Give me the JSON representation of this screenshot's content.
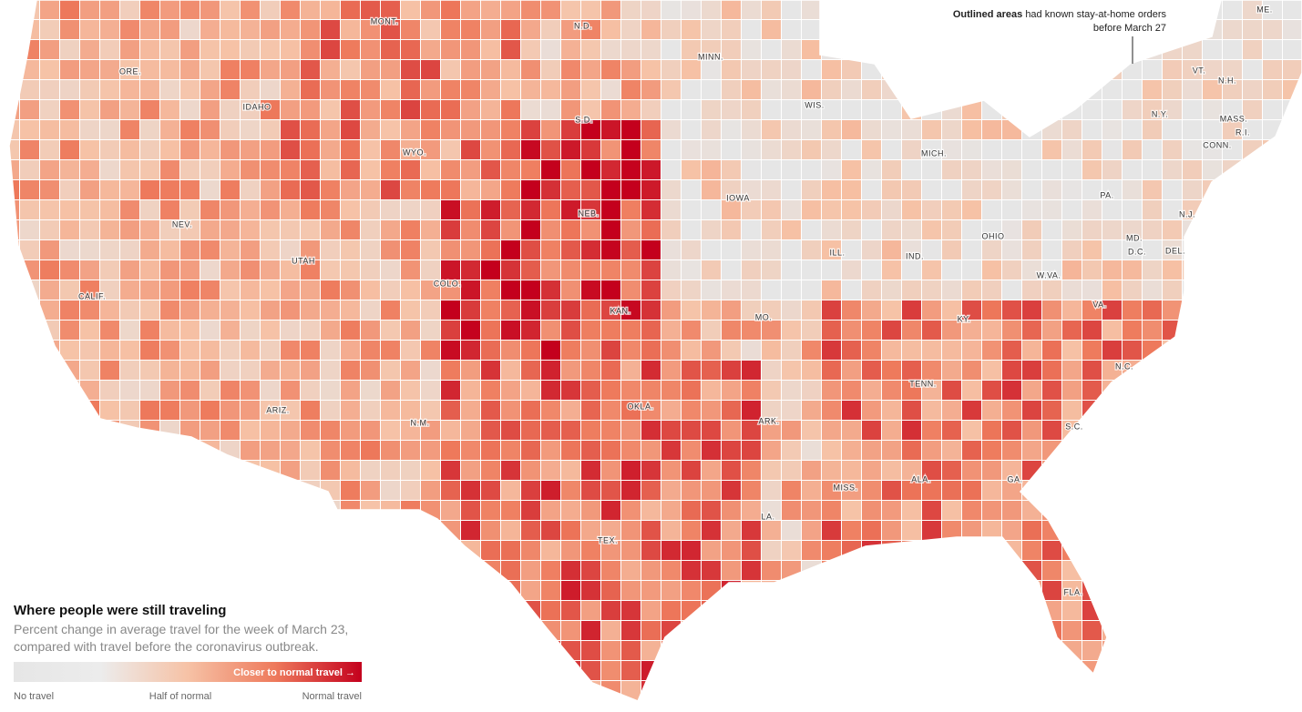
{
  "map": {
    "state_labels": [
      "MONT.",
      "N.D.",
      "MINN.",
      "ORE.",
      "IDAHO",
      "S.D.",
      "WIS.",
      "WYO.",
      "MICH.",
      "IOWA",
      "NEB.",
      "NEV.",
      "UTAH",
      "COLO.",
      "ILL.",
      "IND.",
      "OHIO",
      "PA.",
      "N.Y.",
      "VT.",
      "N.H.",
      "MASS.",
      "R.I.",
      "CONN.",
      "N.J.",
      "MD.",
      "D.C.",
      "DEL.",
      "W.VA.",
      "VA.",
      "KAN.",
      "MO.",
      "KY.",
      "CALIF.",
      "TENN.",
      "N.C.",
      "ARIZ.",
      "N.M.",
      "OKLA.",
      "ARK.",
      "S.C.",
      "MISS.",
      "ALA.",
      "GA.",
      "LA.",
      "TEX.",
      "FLA.",
      "ME."
    ],
    "annotation": {
      "bold": "Outlined areas",
      "line1": "had known stay-at-home orders",
      "line2": "before March 27"
    },
    "legend": {
      "title": "Where people were still traveling",
      "subtitle_line1": "Percent change in average travel for the week of March 23,",
      "subtitle_line2": "compared with travel before the coronavirus outbreak.",
      "bar_label": "Closer to normal travel →",
      "ticks": [
        "No travel",
        "Half of normal",
        "Normal travel"
      ]
    }
  }
}
